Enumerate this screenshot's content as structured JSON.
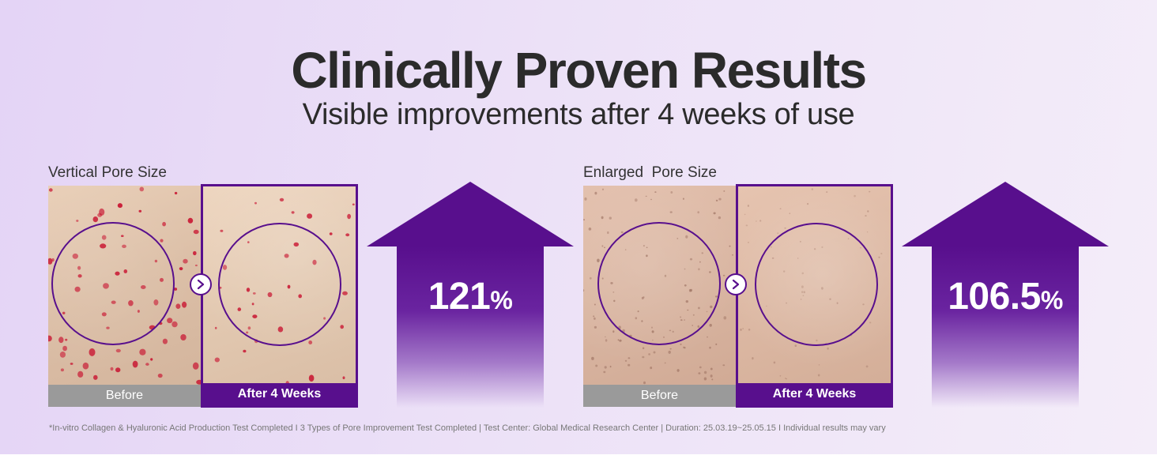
{
  "header": {
    "title": "Clinically Proven Results",
    "subtitle": "Visible improvements after 4 weeks of use"
  },
  "panels": [
    {
      "label": "Vertical Pore Size",
      "before_caption": "Before",
      "after_caption": "After 4 Weeks",
      "improvement_value": "121",
      "improvement_unit": "%"
    },
    {
      "label": "Enlarged  Pore Size",
      "before_caption": "Before",
      "after_caption": "After 4 Weeks",
      "improvement_value": "106.5",
      "improvement_unit": "%"
    }
  ],
  "footnote": "*In-vitro Collagen & Hyaluronic Acid Production Test Completed I 3 Types of Pore Improvement Test Completed | Test Center: Global Medical Research Center | Duration: 25.03.19~25.05.15 I Individual results may vary",
  "colors": {
    "accent": "#580f8d",
    "pore_marker": "#c8102e",
    "before_caption_bg": "#9a9a9a"
  },
  "icons": {
    "compare_arrow": "chevron-right-icon",
    "improvement": "up-arrow-icon"
  }
}
